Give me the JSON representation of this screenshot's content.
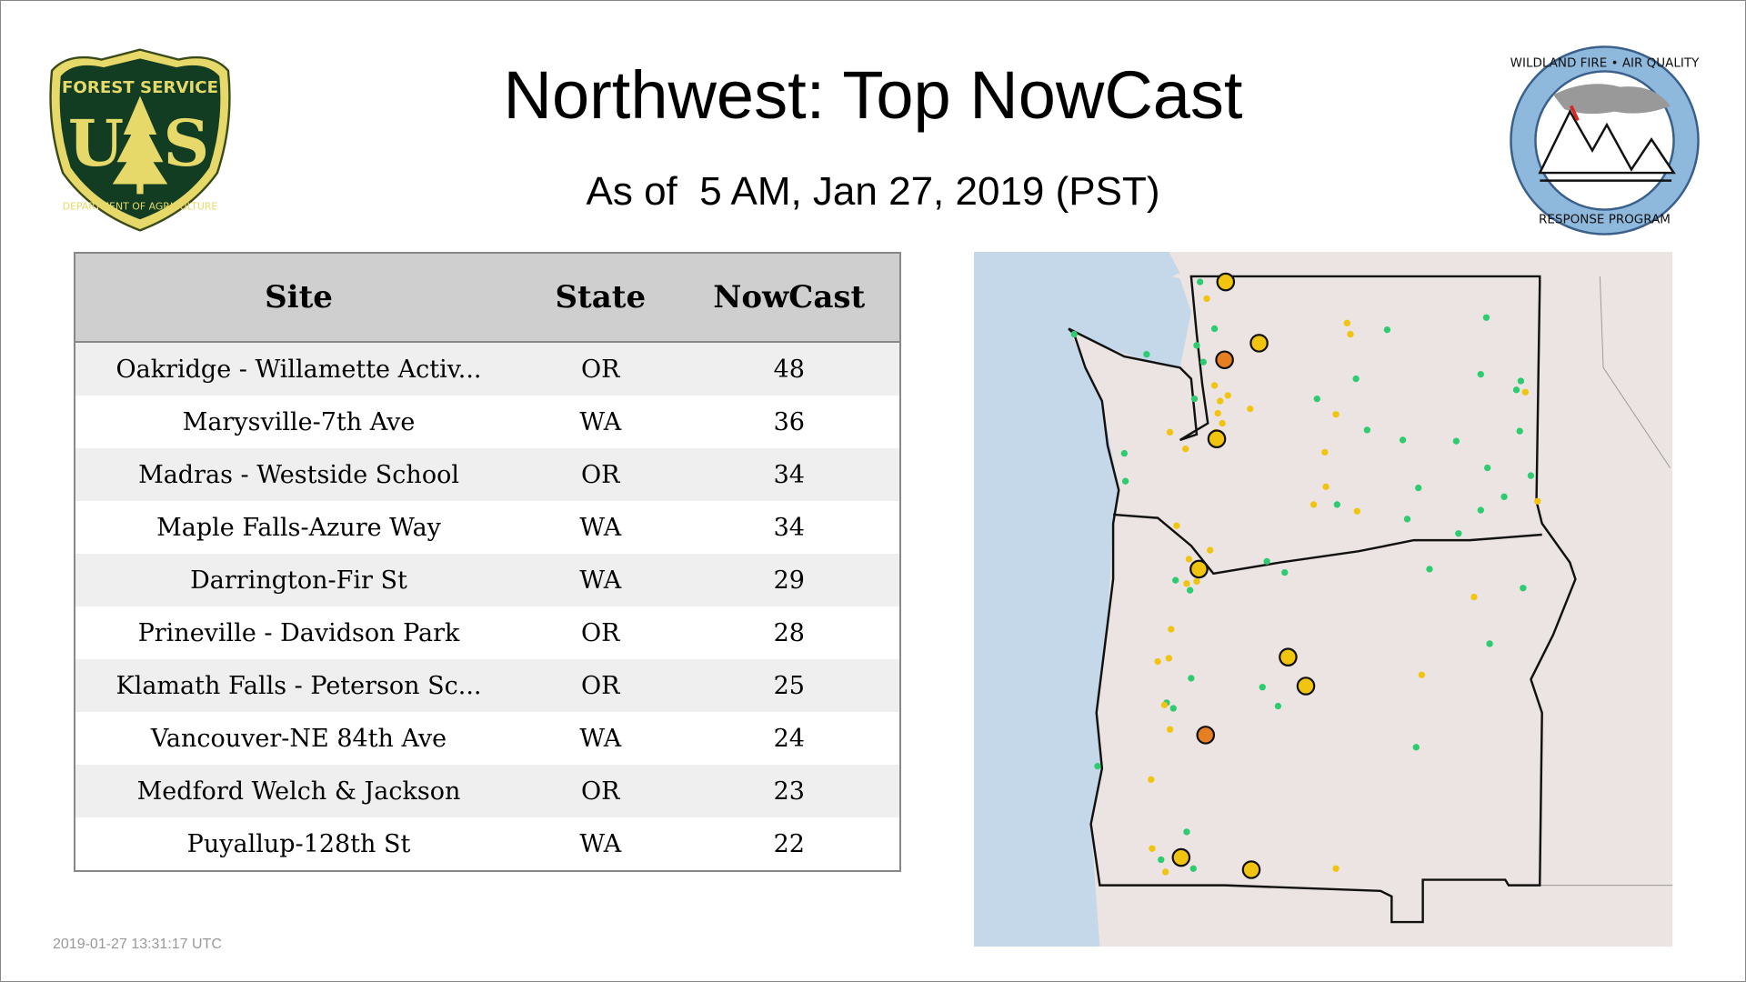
{
  "header": {
    "title": "Northwest: Top NowCast",
    "subtitle": "As of  5 AM, Jan 27, 2019 (PST)"
  },
  "logos": {
    "left": "FOREST SERVICE U S DEPARTMENT OF AGRICULTURE",
    "right": "WILDLAND FIRE AIR QUALITY RESPONSE PROGRAM"
  },
  "table": {
    "columns": [
      "Site",
      "State",
      "NowCast"
    ],
    "rows": [
      {
        "site": "Oakridge - Willamette Activ...",
        "state": "OR",
        "nowcast": "48"
      },
      {
        "site": "Marysville-7th Ave",
        "state": "WA",
        "nowcast": "36"
      },
      {
        "site": "Madras - Westside School",
        "state": "OR",
        "nowcast": "34"
      },
      {
        "site": "Maple Falls-Azure Way",
        "state": "WA",
        "nowcast": "34"
      },
      {
        "site": "Darrington-Fir St",
        "state": "WA",
        "nowcast": "29"
      },
      {
        "site": "Prineville - Davidson Park",
        "state": "OR",
        "nowcast": "28"
      },
      {
        "site": "Klamath Falls - Peterson Sc...",
        "state": "OR",
        "nowcast": "25"
      },
      {
        "site": "Vancouver-NE 84th Ave",
        "state": "WA",
        "nowcast": "24"
      },
      {
        "site": "Medford Welch & Jackson",
        "state": "OR",
        "nowcast": "23"
      },
      {
        "site": "Puyallup-128th St",
        "state": "WA",
        "nowcast": "22"
      }
    ]
  },
  "map": {
    "colors": {
      "good": "#2ecc71",
      "moderate": "#f1c40f",
      "usg": "#e67e22",
      "water": "#c4d8ea",
      "land": "#ece4e2"
    }
  },
  "footer": {
    "timestamp": "2019-01-27 13:31:17 UTC"
  }
}
